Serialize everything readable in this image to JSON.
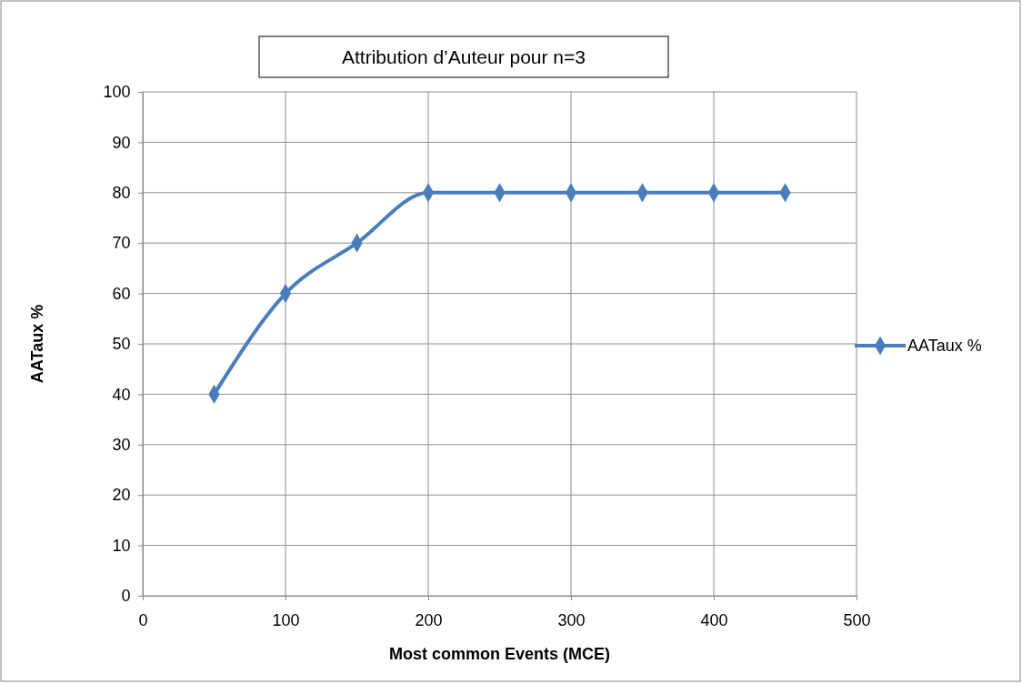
{
  "chart_data": {
    "type": "line",
    "title": "Attribution d’Auteur pour n=3",
    "xlabel": "Most common Events (MCE)",
    "ylabel": "AATaux %",
    "x": [
      50,
      100,
      150,
      200,
      250,
      300,
      350,
      400,
      450
    ],
    "series": [
      {
        "name": "AATaux %",
        "color": "#4a7ebb",
        "values": [
          40,
          60,
          70,
          80,
          80,
          80,
          80,
          80,
          80
        ]
      }
    ],
    "xlim": [
      0,
      500
    ],
    "xticks": [
      0,
      100,
      200,
      300,
      400,
      500
    ],
    "ylim": [
      0,
      100
    ],
    "yticks": [
      0,
      10,
      20,
      30,
      40,
      50,
      60,
      70,
      80,
      90,
      100
    ],
    "grid": true,
    "legend": "right",
    "marker": "diamond",
    "line_style": "solid"
  }
}
